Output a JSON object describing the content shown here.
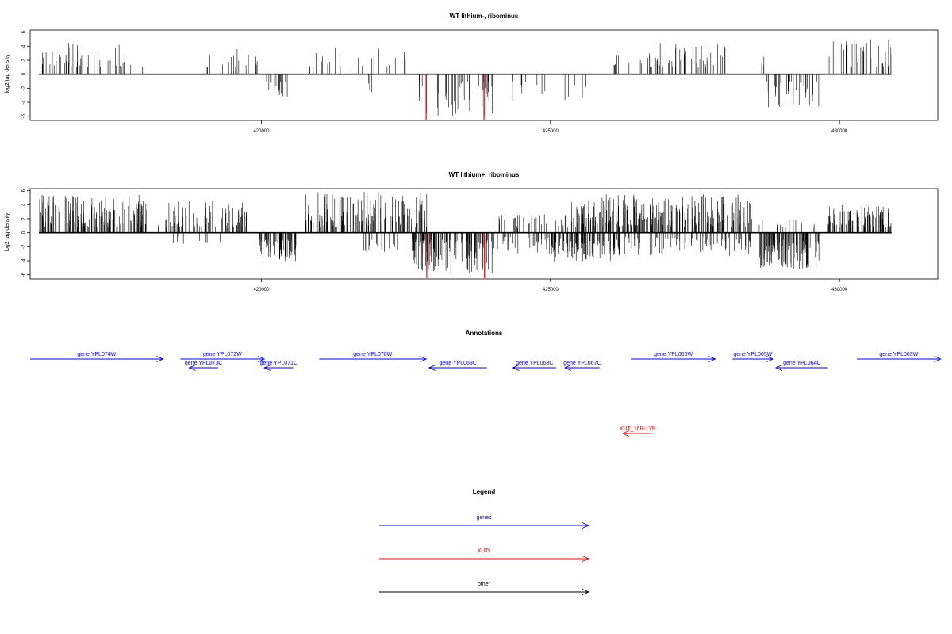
{
  "chart_data": [
    {
      "type": "bar",
      "title": "WT lithium-, ribominus",
      "ylabel": "log2 tag density",
      "xlabel": "",
      "xlim": [
        416000,
        431700
      ],
      "ylim": [
        -6.6,
        6.3
      ],
      "yticks": [
        6,
        4,
        2,
        0,
        -2,
        -4,
        -6
      ],
      "xticks": [
        420000,
        425000,
        430000
      ],
      "grid": false,
      "seed": 11,
      "segments": [
        {
          "from": 416150,
          "to": 418000,
          "sign": 1,
          "density": 0.035,
          "min": 1.0,
          "max": 4.5
        },
        {
          "from": 419000,
          "to": 420000,
          "sign": 1,
          "density": 0.025,
          "min": 1.0,
          "max": 3.9
        },
        {
          "from": 419950,
          "to": 420500,
          "sign": -1,
          "density": 0.04,
          "min": 1.0,
          "max": 4.2
        },
        {
          "from": 420800,
          "to": 422500,
          "sign": 1,
          "density": 0.02,
          "min": 1.0,
          "max": 3.8
        },
        {
          "from": 421600,
          "to": 422000,
          "sign": -1,
          "density": 0.015,
          "min": 0.8,
          "max": 2.8
        },
        {
          "from": 422700,
          "to": 424000,
          "sign": -1,
          "density": 0.045,
          "min": 1.0,
          "max": 6.0
        },
        {
          "from": 424200,
          "to": 425800,
          "sign": -1,
          "density": 0.012,
          "min": 1.0,
          "max": 3.8
        },
        {
          "from": 426100,
          "to": 428100,
          "sign": 1,
          "density": 0.04,
          "min": 1.0,
          "max": 4.5
        },
        {
          "from": 428500,
          "to": 428700,
          "sign": 1,
          "density": 0.02,
          "min": 1.0,
          "max": 3.5
        },
        {
          "from": 428700,
          "to": 429650,
          "sign": -1,
          "density": 0.05,
          "min": 1.0,
          "max": 4.8
        },
        {
          "from": 429800,
          "to": 430900,
          "sign": 1,
          "density": 0.04,
          "min": 1.0,
          "max": 5.0
        }
      ],
      "highlights": [
        {
          "x": 422850,
          "y": -6.5,
          "color": "#ff0000"
        },
        {
          "x": 423850,
          "y": -6.5,
          "color": "#ff0000"
        }
      ]
    },
    {
      "type": "bar",
      "title": "WT lithium+, ribominus",
      "ylabel": "log2 tag density",
      "xlabel": "",
      "xlim": [
        416000,
        431700
      ],
      "ylim": [
        -6.6,
        6.3
      ],
      "yticks": [
        6,
        4,
        2,
        0,
        -2,
        -4,
        -6
      ],
      "xticks": [
        420000,
        425000,
        430000
      ],
      "grid": false,
      "seed": 29,
      "segments": [
        {
          "from": 416150,
          "to": 418050,
          "sign": 1,
          "density": 0.12,
          "min": 0.8,
          "max": 5.5
        },
        {
          "from": 418200,
          "to": 419800,
          "sign": 1,
          "density": 0.07,
          "min": 0.8,
          "max": 4.6
        },
        {
          "from": 418400,
          "to": 419500,
          "sign": -1,
          "density": 0.01,
          "min": 0.6,
          "max": 1.6
        },
        {
          "from": 419950,
          "to": 420650,
          "sign": -1,
          "density": 0.12,
          "min": 1.0,
          "max": 4.3
        },
        {
          "from": 420750,
          "to": 422900,
          "sign": 1,
          "density": 0.09,
          "min": 0.8,
          "max": 5.9
        },
        {
          "from": 421700,
          "to": 422400,
          "sign": -1,
          "density": 0.03,
          "min": 0.8,
          "max": 3.0
        },
        {
          "from": 422600,
          "to": 424000,
          "sign": -1,
          "density": 0.12,
          "min": 1.0,
          "max": 6.0
        },
        {
          "from": 424000,
          "to": 425200,
          "sign": -1,
          "density": 0.05,
          "min": 0.6,
          "max": 3.0
        },
        {
          "from": 424100,
          "to": 425300,
          "sign": 1,
          "density": 0.04,
          "min": 0.6,
          "max": 2.8
        },
        {
          "from": 425000,
          "to": 426200,
          "sign": -1,
          "density": 0.11,
          "min": 1.0,
          "max": 4.4
        },
        {
          "from": 425300,
          "to": 428500,
          "sign": 1,
          "density": 0.11,
          "min": 0.8,
          "max": 5.5
        },
        {
          "from": 426200,
          "to": 428500,
          "sign": -1,
          "density": 0.05,
          "min": 0.6,
          "max": 3.4
        },
        {
          "from": 428600,
          "to": 429650,
          "sign": -1,
          "density": 0.16,
          "min": 1.0,
          "max": 5.2
        },
        {
          "from": 428600,
          "to": 429650,
          "sign": 1,
          "density": 0.02,
          "min": 0.6,
          "max": 2.0
        },
        {
          "from": 429800,
          "to": 430900,
          "sign": 1,
          "density": 0.12,
          "min": 0.8,
          "max": 4.0
        }
      ],
      "highlights": [
        {
          "x": 422860,
          "y": -6.5,
          "color": "#ff0000"
        },
        {
          "x": 423860,
          "y": -6.5,
          "color": "#ff0000"
        }
      ]
    }
  ],
  "annotations": {
    "title": "Annotations",
    "genes": [
      {
        "name": "gene YPL074W",
        "start": 416000,
        "end": 418300,
        "strand": "+",
        "track": 0
      },
      {
        "name": "gene YPL072W",
        "start": 418600,
        "end": 420050,
        "strand": "+",
        "track": 0
      },
      {
        "name": "gene YPL073C",
        "start": 418750,
        "end": 419250,
        "strand": "-",
        "track": 1
      },
      {
        "name": "gene YPL071C",
        "start": 420050,
        "end": 420550,
        "strand": "-",
        "track": 1
      },
      {
        "name": "gene YPL070W",
        "start": 421000,
        "end": 422850,
        "strand": "+",
        "track": 0
      },
      {
        "name": "gene YPL069C",
        "start": 422900,
        "end": 423900,
        "strand": "-",
        "track": 1
      },
      {
        "name": "gene YPL068C",
        "start": 424350,
        "end": 425100,
        "strand": "-",
        "track": 1
      },
      {
        "name": "gene YPL067C",
        "start": 425250,
        "end": 425850,
        "strand": "-",
        "track": 1
      },
      {
        "name": "gene YPL066W",
        "start": 426400,
        "end": 427850,
        "strand": "+",
        "track": 0
      },
      {
        "name": "gene YPL065W",
        "start": 428150,
        "end": 428850,
        "strand": "+",
        "track": 0
      },
      {
        "name": "gene YPL064C",
        "start": 428900,
        "end": 429800,
        "strand": "-",
        "track": 1
      },
      {
        "name": "gene YPL063W",
        "start": 430300,
        "end": 431750,
        "strand": "+",
        "track": 0
      }
    ],
    "xuts": [
      {
        "name": "XUT_16R-179",
        "start": 426250,
        "end": 426750,
        "strand": "-"
      }
    ]
  },
  "legend": {
    "title": "Legend",
    "items": [
      {
        "label": "genes",
        "color": "#0000ff"
      },
      {
        "label": "XUTs",
        "color": "#ff0000"
      },
      {
        "label": "other",
        "color": "#000000"
      }
    ]
  }
}
